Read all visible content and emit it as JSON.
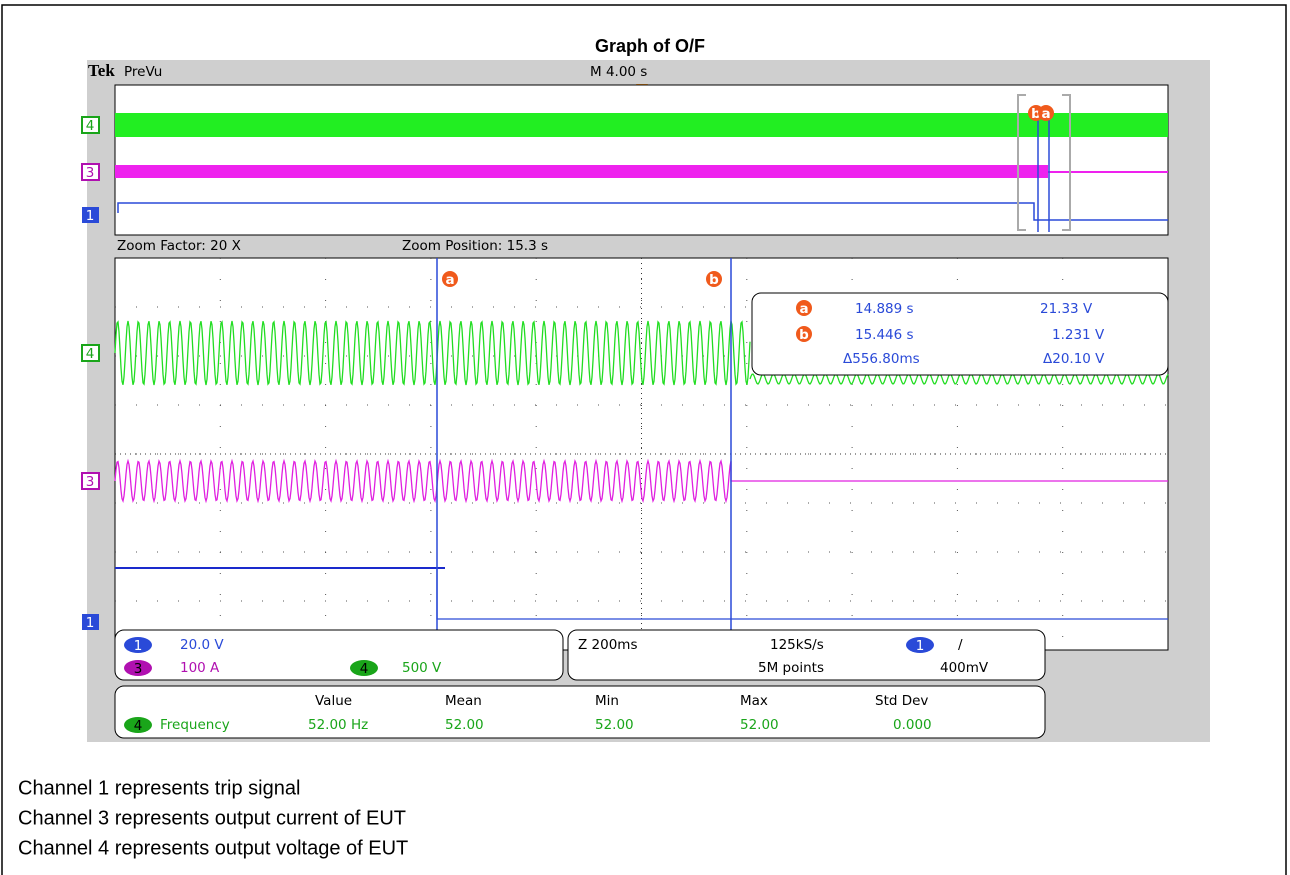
{
  "title": "Graph of O/F",
  "scope": {
    "brand": "Tek",
    "mode": "PreVu",
    "timebase": "M 4.00 s",
    "zoom_factor": "Zoom Factor: 20 X",
    "zoom_position": "Zoom Position: 15.3 s",
    "channel_markers": {
      "ch4": "4",
      "ch3": "3",
      "ch1": "1"
    },
    "cursors": {
      "a": "a",
      "b": "b"
    },
    "cursor_readout": {
      "rows": [
        {
          "cursor": "a",
          "time": "14.889 s",
          "value": "21.33 V"
        },
        {
          "cursor": "b",
          "time": "15.446 s",
          "value": "1.231 V"
        }
      ],
      "delta_time": "Δ556.80ms",
      "delta_value": "Δ20.10 V"
    },
    "vertical": [
      {
        "channel": "1",
        "scale": "20.0 V"
      },
      {
        "channel": "3",
        "scale": "100 A"
      },
      {
        "channel": "4",
        "scale": "500 V"
      }
    ],
    "horizontal": {
      "zoom": "Z 200ms",
      "sample_rate": "125kS/s",
      "record": "5M points",
      "trigger_channel": "1",
      "trigger_slope": "/",
      "trigger_level": "400mV"
    },
    "measurements": {
      "headers": [
        "Value",
        "Mean",
        "Min",
        "Max",
        "Std Dev"
      ],
      "channel": "4",
      "name": "Frequency",
      "values": [
        "52.00 Hz",
        "52.00",
        "52.00",
        "52.00",
        "0.000"
      ]
    }
  },
  "captions": [
    "Channel 1 represents trip signal",
    "Channel 3 represents output current of EUT",
    "Channel 4 represents output voltage of EUT"
  ]
}
